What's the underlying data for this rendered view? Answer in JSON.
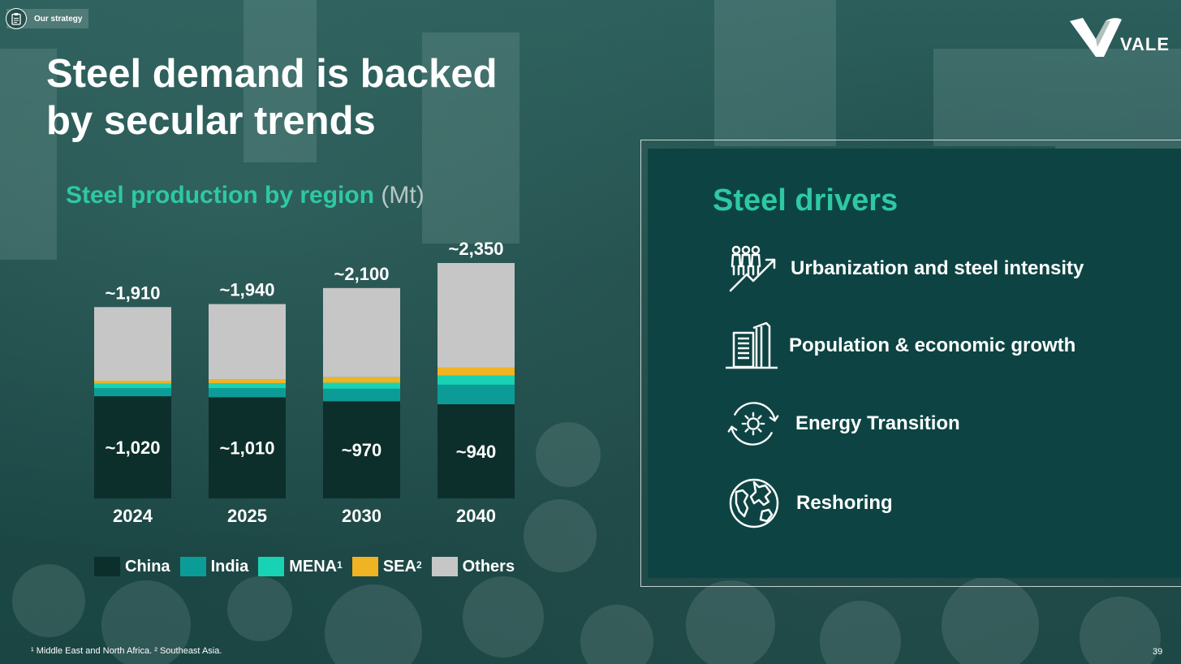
{
  "section_tag": {
    "label": "Our strategy",
    "icon": "clipboard-icon"
  },
  "brand": {
    "name": "VALE",
    "logo_icon": "vale-v-logo-icon",
    "color": "#ffffff"
  },
  "title_lines": [
    "Steel demand is backed",
    "by secular trends"
  ],
  "chart_heading": {
    "main": "Steel production by region",
    "unit": "(Mt)"
  },
  "chart_data": {
    "type": "bar",
    "stacked": true,
    "title": "Steel production by region (Mt)",
    "categories": [
      "2024",
      "2025",
      "2030",
      "2040"
    ],
    "series": [
      {
        "name": "China",
        "color": "#0d2f2b",
        "values": [
          1020,
          1010,
          970,
          940
        ]
      },
      {
        "name": "India",
        "color": "#0c9c98",
        "values": [
          80,
          90,
          125,
          195
        ]
      },
      {
        "name": "MENA",
        "color": "#19d2b3",
        "values": [
          45,
          50,
          60,
          90
        ]
      },
      {
        "name": "SEA",
        "color": "#f0b321",
        "values": [
          30,
          35,
          55,
          80
        ]
      },
      {
        "name": "Others",
        "color": "#c6c6c6",
        "values": [
          735,
          755,
          890,
          1045
        ]
      }
    ],
    "bottom_labels": [
      "~1,020",
      "~1,010",
      "~970",
      "~940"
    ],
    "total_labels": [
      "~1,910",
      "~1,940",
      "~2,100",
      "~2,350"
    ],
    "ylim": [
      0,
      2350
    ],
    "legend": [
      {
        "label": "China",
        "sup": "",
        "color": "#0d2f2b"
      },
      {
        "label": "India",
        "sup": "",
        "color": "#0c9c98"
      },
      {
        "label": "MENA",
        "sup": "1",
        "color": "#19d2b3"
      },
      {
        "label": "SEA",
        "sup": "2",
        "color": "#f0b321"
      },
      {
        "label": "Others",
        "sup": "",
        "color": "#c6c6c6"
      }
    ],
    "legend_position": "bottom"
  },
  "drivers": {
    "title": "Steel drivers",
    "items": [
      {
        "label": "Urbanization and steel intensity",
        "icon": "people-growth-icon"
      },
      {
        "label": "Population & economic growth",
        "icon": "buildings-icon"
      },
      {
        "label": "Energy Transition",
        "icon": "sun-cycle-icon"
      },
      {
        "label": "Reshoring",
        "icon": "globe-icon"
      }
    ]
  },
  "footnote": "¹ Middle East and North Africa.   ² Southeast Asia.",
  "page_number": "39",
  "colors": {
    "accent": "#2ec8a4",
    "panel": "#0d4443",
    "background": "#1d4a48"
  }
}
